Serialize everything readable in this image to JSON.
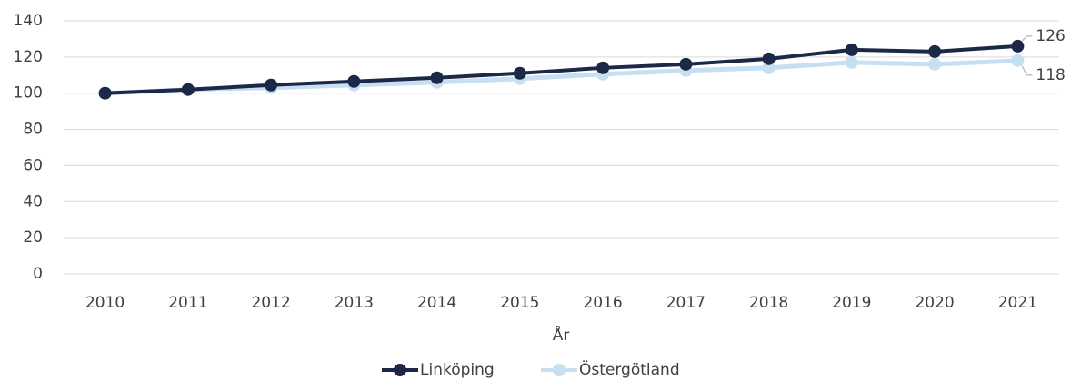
{
  "chart_data": {
    "type": "line",
    "x_label": "År",
    "categories": [
      "2010",
      "2011",
      "2012",
      "2013",
      "2014",
      "2015",
      "2016",
      "2017",
      "2018",
      "2019",
      "2020",
      "2021"
    ],
    "series": [
      {
        "name": "Linköping",
        "color": "#1b2847",
        "values": [
          100,
          102,
          104.5,
          106.5,
          108.5,
          111,
          114,
          116,
          119,
          124,
          123,
          126
        ]
      },
      {
        "name": "Östergötland",
        "color": "#c6dff1",
        "values": [
          100,
          102,
          103,
          104.5,
          106,
          108,
          110.5,
          112.5,
          114,
          117,
          116,
          118
        ]
      }
    ],
    "ylim": [
      0,
      140
    ],
    "yticks": [
      0,
      20,
      40,
      60,
      80,
      100,
      120,
      140
    ],
    "grid": true,
    "legend": "bottom"
  }
}
